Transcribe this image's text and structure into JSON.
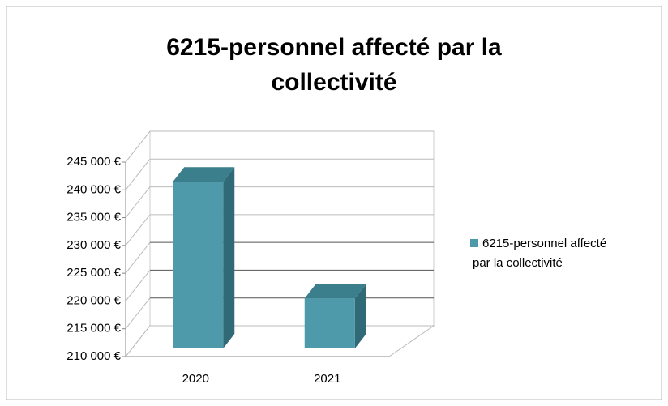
{
  "chart_data": {
    "type": "bar3d",
    "title": "6215-personnel affecté par la collectivité",
    "title_lines": [
      "6215-personnel affecté par la",
      "collectivité"
    ],
    "categories": [
      "2020",
      "2021"
    ],
    "series": [
      {
        "name": "6215-personnel affecté par la collectivité",
        "name_lines": [
          "6215-personnel affecté",
          "par la collectivité"
        ],
        "color": "#4f9aaa",
        "values": [
          240000,
          219000
        ]
      }
    ],
    "ylim": [
      210000,
      245000
    ],
    "yticks": [
      {
        "value": 210000,
        "label": "210 000 €"
      },
      {
        "value": 215000,
        "label": "215 000 €"
      },
      {
        "value": 220000,
        "label": "220 000 €"
      },
      {
        "value": 225000,
        "label": "225 000 €"
      },
      {
        "value": 230000,
        "label": "230 000 €"
      },
      {
        "value": 235000,
        "label": "235 000 €"
      },
      {
        "value": 240000,
        "label": "240 000 €"
      },
      {
        "value": 245000,
        "label": "245 000 €"
      }
    ],
    "grid": true,
    "legend": "right"
  }
}
